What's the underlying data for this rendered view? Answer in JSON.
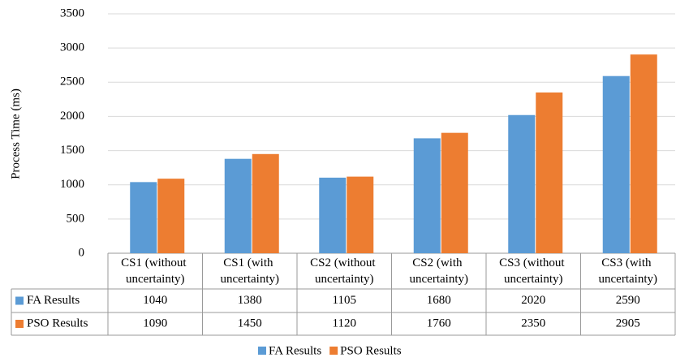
{
  "chart_data": {
    "type": "bar",
    "y_label": "Process Time (ms)",
    "categories": [
      "CS1 (without uncertainty)",
      "CS1 (with uncertainty)",
      "CS2 (without uncertainty)",
      "CS2 (with uncertainty)",
      "CS3 (without uncertainty)",
      "CS3 (with uncertainty)"
    ],
    "series": [
      {
        "name": "FA Results",
        "color": "#5b9bd5",
        "values": [
          1040,
          1380,
          1105,
          1680,
          2020,
          2590
        ]
      },
      {
        "name": "PSO Results",
        "color": "#ed7d31",
        "values": [
          1090,
          1450,
          1120,
          1760,
          2350,
          2905
        ]
      }
    ],
    "ylim": [
      0,
      3500
    ],
    "yticks": [
      0,
      500,
      1000,
      1500,
      2000,
      2500,
      3000,
      3500
    ],
    "grid": true,
    "data_table": true,
    "legend": "bottom"
  }
}
